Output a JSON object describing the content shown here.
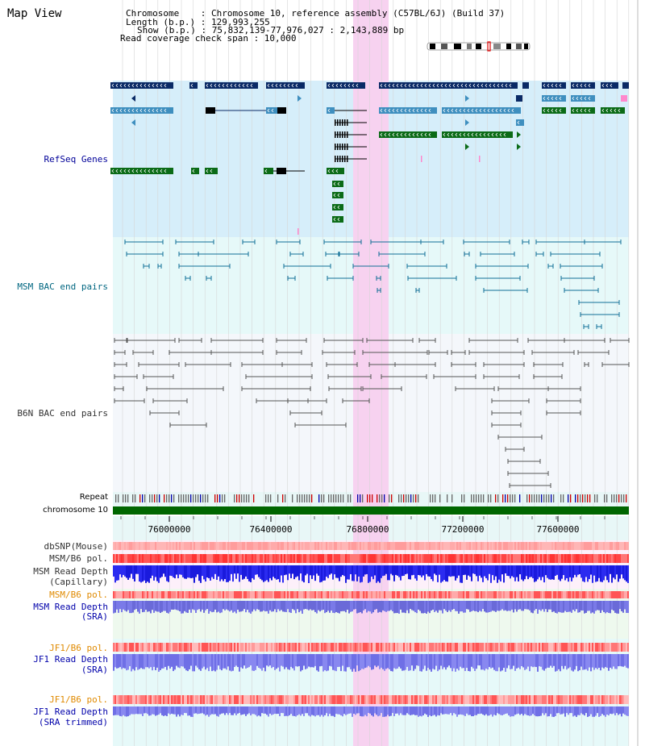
{
  "window": {
    "title": "Map View"
  },
  "info": {
    "chromosome_line": "Chromosome    : Chromosome 10, reference assembly (C57BL/6J) (Build 37)",
    "length_line": "Length (b.p.) : 129,993,255",
    "show_line": "Show (b.p.) : 75,832,139-77,976,027 : 2,143,889 bp",
    "coverage_line": "Read coverage check span : 10,000"
  },
  "tracks": {
    "refseq": {
      "label": "RefSeq Genes",
      "color": "#000099"
    },
    "msm_bac": {
      "label": "MSM BAC end pairs",
      "color": "#006680"
    },
    "b6n_bac": {
      "label": "B6N BAC end pairs",
      "color": "#333333"
    },
    "repeat": {
      "label": "Repeat",
      "color": "#000000"
    },
    "chromosome": {
      "label": "chromosome 10",
      "color": "#000000"
    },
    "dbsnp": {
      "label": "dbSNP(Mouse)",
      "color": "#333333"
    },
    "msm_b6_pol_1": {
      "label": "MSM/B6 pol.",
      "color": "#333333"
    },
    "msm_depth_cap_1": {
      "label": "MSM Read Depth",
      "color": "#333333"
    },
    "msm_depth_cap_2": {
      "label": "(Capillary)",
      "color": "#333333"
    },
    "msm_b6_pol_2": {
      "label": "MSM/B6 pol.",
      "color": "#e08a00"
    },
    "msm_depth_sra_1": {
      "label": "MSM Read Depth",
      "color": "#0000aa"
    },
    "msm_depth_sra_2": {
      "label": "(SRA)",
      "color": "#0000aa"
    },
    "jf1_pol_1": {
      "label": "JF1/B6 pol.",
      "color": "#e08a00"
    },
    "jf1_depth_sra_1": {
      "label": "JF1 Read Depth",
      "color": "#0000aa"
    },
    "jf1_depth_sra_2": {
      "label": "(SRA)",
      "color": "#0000aa"
    },
    "jf1_pol_2": {
      "label": "JF1/B6 pol.",
      "color": "#e08a00"
    },
    "jf1_depth_trim_1": {
      "label": "JF1 Read Depth",
      "color": "#0000aa"
    },
    "jf1_depth_trim_2": {
      "label": "(SRA trimmed)",
      "color": "#0000aa"
    }
  },
  "axis": {
    "ticks": [
      "76000000",
      "76400000",
      "76800000",
      "77200000",
      "77600000"
    ]
  },
  "colors": {
    "refseq_bg": "#d6eefa",
    "msm_bg": "#e6f9f9",
    "b6n_bg": "#f4f7fb",
    "highlight": "#f7d2f0",
    "gene_dark": "#0a2a66",
    "gene_mid": "#3f8fbf",
    "gene_green": "#0b6b17",
    "chromosome_bar": "#006600",
    "msm_bac_line": "#106e96",
    "b6n_bac_line": "#555555"
  }
}
